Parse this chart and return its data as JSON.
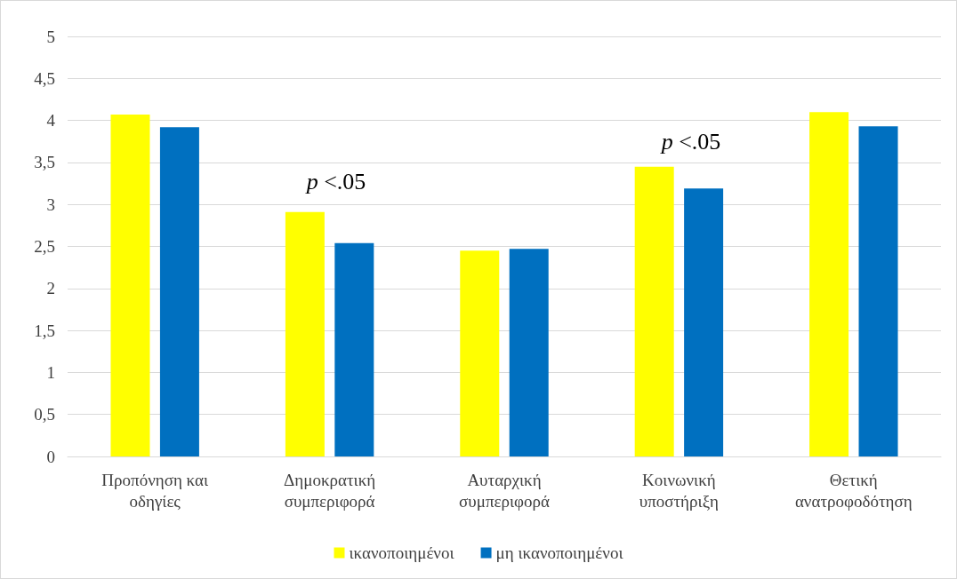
{
  "chart_data": {
    "type": "bar",
    "categories": [
      "Προπόνηση και οδηγίες",
      "Δημοκρατική συμπεριφορά",
      "Αυταρχική συμπεριφορά",
      "Κοινωνική υποστήριξη",
      "Θετική ανατροφοδότηση"
    ],
    "series": [
      {
        "name": "ικανοποιημένοι",
        "color": "#ffff00",
        "values": [
          4.07,
          2.91,
          2.45,
          3.45,
          4.1
        ]
      },
      {
        "name": "μη ικανοποιημένοι",
        "color": "#0070c0",
        "values": [
          3.92,
          2.54,
          2.47,
          3.19,
          3.93
        ]
      }
    ],
    "ylim": [
      0,
      5
    ],
    "yticks": [
      "0",
      {
        "value": 0.5,
        "label": "0,5"
      },
      "1",
      {
        "value": 1.5,
        "label": "1,5"
      },
      "2",
      {
        "value": 2.5,
        "label": "2,5"
      },
      "3",
      {
        "value": 3.5,
        "label": "3,5"
      },
      "4",
      {
        "value": 4.5,
        "label": "4,5"
      },
      "5"
    ],
    "annotations": [
      "p <.05",
      "p <.05"
    ],
    "grid": "y",
    "legend": "bottom"
  }
}
